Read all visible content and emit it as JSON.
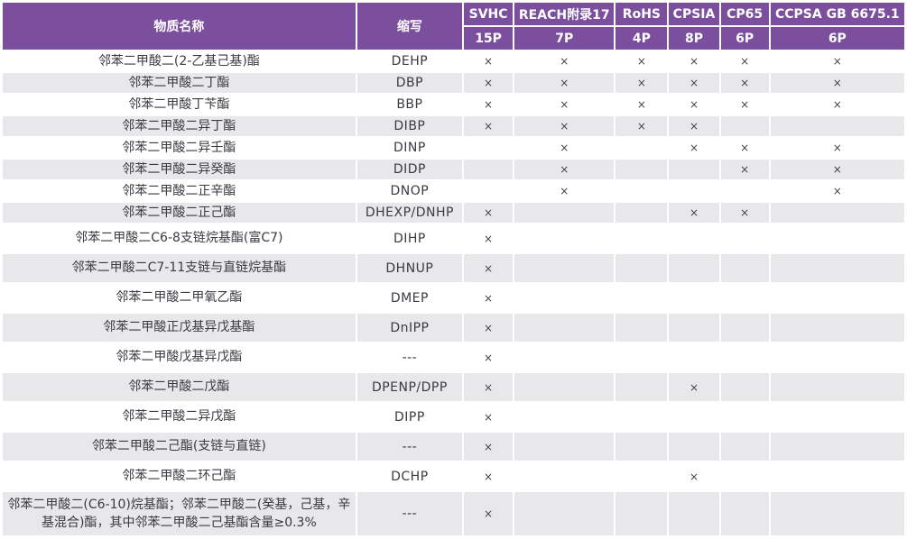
{
  "colors": {
    "header_bg": "#7B4F9E",
    "header_text": "#FFFFFF",
    "row_alt_bg": "#E8E8EA",
    "body_text": "#3A3A40",
    "mark_color": "#44444C"
  },
  "table": {
    "mark_symbol": "×",
    "header": {
      "name_label": "物质名称",
      "abbr_label": "缩写",
      "regulations": [
        {
          "label": "SVHC",
          "sub": "15P"
        },
        {
          "label": "REACH附录17",
          "sub": "7P"
        },
        {
          "label": "RoHS",
          "sub": "4P"
        },
        {
          "label": "CPSIA",
          "sub": "8P"
        },
        {
          "label": "CP65",
          "sub": "6P"
        },
        {
          "label": "CCPSA GB 6675.1",
          "sub": "6P"
        }
      ]
    },
    "rows": [
      {
        "name": "邻苯二甲酸二(2-乙基己基)酯",
        "abbr": "DEHP",
        "marks": [
          true,
          true,
          true,
          true,
          true,
          true
        ]
      },
      {
        "name": "邻苯二甲酸二丁酯",
        "abbr": "DBP",
        "marks": [
          true,
          true,
          true,
          true,
          true,
          true
        ]
      },
      {
        "name": "邻苯二甲酸丁苄酯",
        "abbr": "BBP",
        "marks": [
          true,
          true,
          true,
          true,
          true,
          true
        ]
      },
      {
        "name": "邻苯二甲酸二异丁酯",
        "abbr": "DIBP",
        "marks": [
          true,
          true,
          true,
          true,
          false,
          false
        ]
      },
      {
        "name": "邻苯二甲酸二异壬酯",
        "abbr": "DINP",
        "marks": [
          false,
          true,
          false,
          true,
          true,
          true
        ]
      },
      {
        "name": "邻苯二甲酸二异癸酯",
        "abbr": "DIDP",
        "marks": [
          false,
          true,
          false,
          false,
          true,
          true
        ]
      },
      {
        "name": "邻苯二甲酸二正辛酯",
        "abbr": "DNOP",
        "marks": [
          false,
          true,
          false,
          false,
          false,
          true
        ]
      },
      {
        "name": "邻苯二甲酸二正己酯",
        "abbr": "DHEXP/DNHP",
        "marks": [
          true,
          false,
          false,
          true,
          true,
          false
        ]
      },
      {
        "name": "邻苯二甲酸二C6-8支链烷基酯(富C7)",
        "abbr": "DIHP",
        "marks": [
          true,
          false,
          false,
          false,
          false,
          false
        ]
      },
      {
        "name": "邻苯二甲酸二C7-11支链与直链烷基酯",
        "abbr": "DHNUP",
        "marks": [
          true,
          false,
          false,
          false,
          false,
          false
        ]
      },
      {
        "name": "邻苯二甲酸二甲氧乙酯",
        "abbr": "DMEP",
        "marks": [
          true,
          false,
          false,
          false,
          false,
          false
        ]
      },
      {
        "name": "邻苯二甲酸正戊基异戊基酯",
        "abbr": "DnIPP",
        "marks": [
          true,
          false,
          false,
          false,
          false,
          false
        ]
      },
      {
        "name": "邻苯二甲酸戊基异戊酯",
        "abbr": "---",
        "marks": [
          true,
          false,
          false,
          false,
          false,
          false
        ]
      },
      {
        "name": "邻苯二甲酸二戊酯",
        "abbr": "DPENP/DPP",
        "marks": [
          true,
          false,
          false,
          true,
          false,
          false
        ]
      },
      {
        "name": "邻苯二甲酸二异戊酯",
        "abbr": "DIPP",
        "marks": [
          true,
          false,
          false,
          false,
          false,
          false
        ]
      },
      {
        "name": "邻苯二甲酸二己酯(支链与直链)",
        "abbr": "---",
        "marks": [
          true,
          false,
          false,
          false,
          false,
          false
        ]
      },
      {
        "name": "邻苯二甲酸二环己酯",
        "abbr": "DCHP",
        "marks": [
          true,
          false,
          false,
          true,
          false,
          false
        ]
      },
      {
        "name": "邻苯二甲酸二(C6-10)烷基酯；邻苯二甲酸二(癸基，己基，辛基混合)酯，其中邻苯二甲酸二己基酯含量≥0.3%",
        "abbr": "---",
        "marks": [
          true,
          false,
          false,
          false,
          false,
          false
        ]
      }
    ]
  }
}
